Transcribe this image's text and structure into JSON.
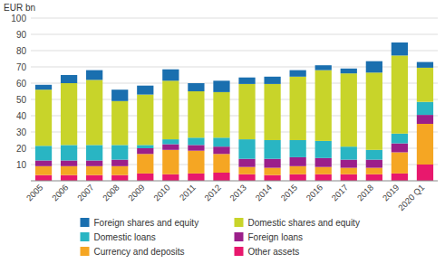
{
  "chart_data": {
    "type": "bar",
    "stacked": true,
    "ylabel": "EUR bn",
    "categories": [
      "2005",
      "2006",
      "2007",
      "2008",
      "2009",
      "2010",
      "2011",
      "2012",
      "2013",
      "2014",
      "2015",
      "2016",
      "2017",
      "2018",
      "2019",
      "2020 Q1"
    ],
    "series": [
      {
        "name": "Other assets",
        "color": "#e8186d",
        "values": [
          3.5,
          3.5,
          3.5,
          3.5,
          4.5,
          4.0,
          4.5,
          5.0,
          4.0,
          3.5,
          4.0,
          4.0,
          4.0,
          4.0,
          4.5,
          10.0
        ]
      },
      {
        "name": "Currency and deposits",
        "color": "#f5a623",
        "values": [
          5.5,
          5.5,
          5.5,
          5.5,
          12.0,
          15.0,
          14.0,
          11.5,
          4.5,
          4.5,
          5.0,
          4.5,
          4.0,
          4.0,
          13.0,
          25.0
        ]
      },
      {
        "name": "Foreign loans",
        "color": "#9b1f8a",
        "values": [
          3.5,
          3.5,
          3.5,
          4.0,
          3.5,
          3.5,
          3.5,
          4.5,
          5.0,
          5.5,
          5.5,
          5.5,
          5.0,
          5.0,
          5.5,
          5.5
        ]
      },
      {
        "name": "Domestic loans",
        "color": "#29b5c3",
        "values": [
          9.0,
          9.5,
          9.5,
          9.0,
          2.0,
          3.0,
          4.5,
          5.5,
          12.0,
          11.5,
          10.5,
          10.5,
          8.0,
          6.0,
          6.0,
          8.0
        ]
      },
      {
        "name": "Domestic shares and equity",
        "color": "#c8d42a",
        "values": [
          34.5,
          38.0,
          40.0,
          27.0,
          31.0,
          36.0,
          28.5,
          28.0,
          34.0,
          34.5,
          39.0,
          43.5,
          45.0,
          47.5,
          48.0,
          21.0
        ]
      },
      {
        "name": "Foreign shares and equity",
        "color": "#1a6faf",
        "values": [
          3.0,
          5.0,
          6.0,
          7.0,
          5.5,
          7.0,
          5.0,
          7.0,
          4.0,
          4.5,
          4.0,
          3.0,
          3.0,
          7.0,
          8.0,
          3.5
        ]
      }
    ],
    "ylim": [
      0,
      100
    ],
    "yticks": [
      10,
      20,
      30,
      40,
      50,
      60,
      70,
      80,
      90,
      100
    ],
    "grid": true,
    "legend": "bottom"
  }
}
